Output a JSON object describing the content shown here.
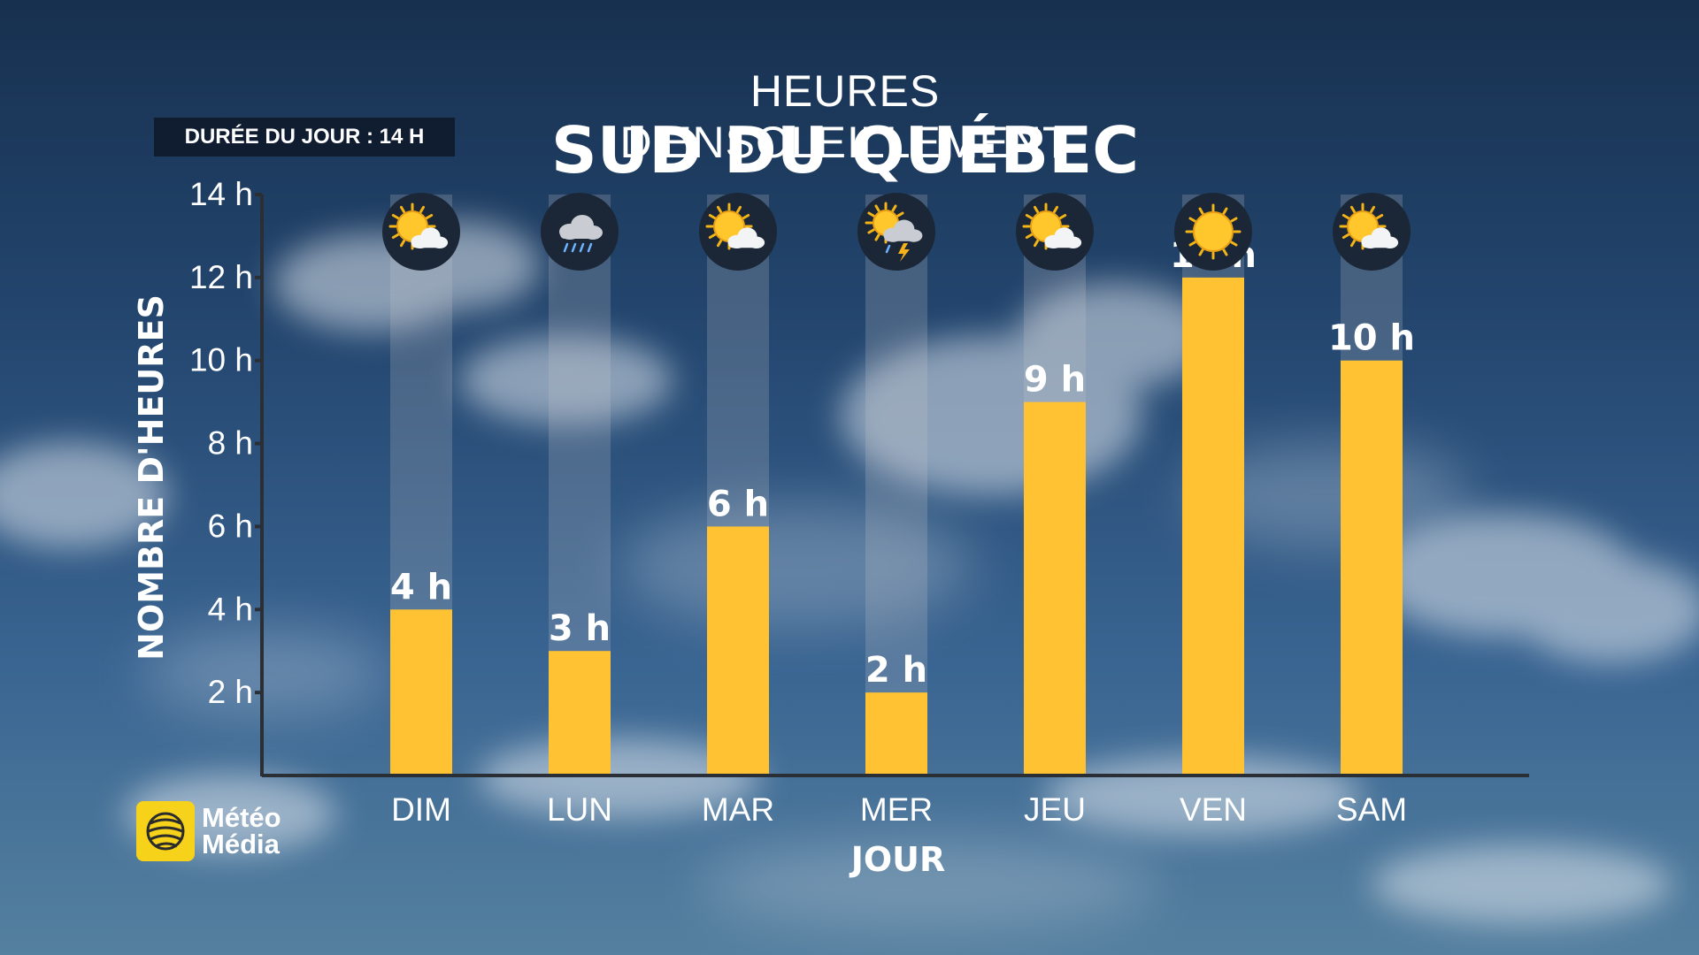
{
  "header": {
    "title_top": "HEURES D'ENSOLEILLEMENT",
    "title_main": "SUD DU QUÉBEC",
    "day_length": "DURÉE DU JOUR : 14 H"
  },
  "logo": {
    "line1": "Météo",
    "line2": "Média"
  },
  "colors": {
    "bar": "#fec233",
    "track": "rgba(200,200,205,0.22)",
    "axis": "#2a2f36"
  },
  "chart_data": {
    "type": "bar",
    "title": "HEURES D'ENSOLEILLEMENT",
    "subtitle": "SUD DU QUÉBEC",
    "xlabel": "JOUR",
    "ylabel": "NOMBRE D'HEURES",
    "categories": [
      "DIM",
      "LUN",
      "MAR",
      "MER",
      "JEU",
      "VEN",
      "SAM"
    ],
    "values": [
      4,
      3,
      6,
      2,
      9,
      12,
      10
    ],
    "value_labels": [
      "4 h",
      "3 h",
      "6 h",
      "2 h",
      "9 h",
      "12 h",
      "10 h"
    ],
    "max_possible": 14,
    "ylim": [
      0,
      14
    ],
    "yticks": [
      2,
      4,
      6,
      8,
      10,
      12,
      14
    ],
    "ytick_labels": [
      "2 h",
      "4 h",
      "6 h",
      "8 h",
      "10 h",
      "12 h",
      "14 h"
    ],
    "icons": [
      "sun-cloud-icon",
      "rain-cloud-icon",
      "sun-cloud-icon",
      "thunderstorm-icon",
      "sun-cloud-icon",
      "sun-icon",
      "sun-cloud-icon"
    ],
    "grid": false,
    "legend": "none"
  }
}
